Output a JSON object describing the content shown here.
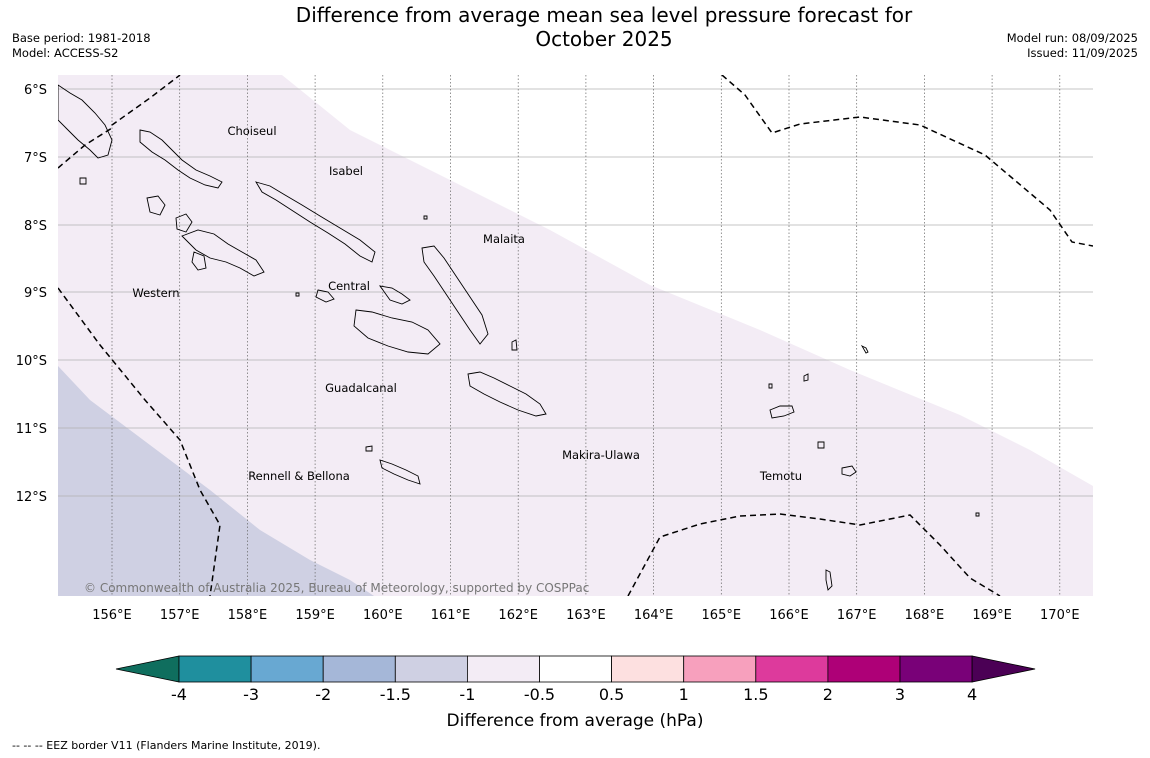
{
  "header": {
    "title_line1": "Difference from average mean sea level pressure forecast for",
    "title_line2": "October 2025",
    "base_period": "Base period: 1981-2018",
    "model": "Model: ACCESS-S2",
    "model_run": "Model run: 08/09/2025",
    "issued": "Issued: 11/09/2025"
  },
  "map": {
    "lat_labels": [
      "6°S",
      "7°S",
      "8°S",
      "9°S",
      "10°S",
      "11°S",
      "12°S"
    ],
    "lon_labels": [
      "156°E",
      "157°E",
      "158°E",
      "159°E",
      "160°E",
      "161°E",
      "162°E",
      "163°E",
      "164°E",
      "165°E",
      "166°E",
      "167°E",
      "168°E",
      "169°E",
      "170°E"
    ],
    "regions": [
      "Choiseul",
      "Isabel",
      "Malaita",
      "Western",
      "Central",
      "Guadalcanal",
      "Makira-Ulawa",
      "Temotu",
      "Rennell & Bellona"
    ],
    "copyright": "© Commonwealth of Australia 2025, Bureau of Meteorology, supported by COSPPac",
    "fill_colors": {
      "neg_0_5_to_neg_1": "#f3ecf5",
      "neg_1_to_neg_1_5": "#cfd0e3"
    }
  },
  "colorbar": {
    "title": "Difference from average (hPa)",
    "ticks": [
      "-4",
      "-3",
      "-2",
      "-1.5",
      "-1",
      "-0.5",
      "0.5",
      "1",
      "1.5",
      "2",
      "3",
      "4"
    ],
    "colors": [
      "#0f6e5e",
      "#1f8f9e",
      "#68a8d2",
      "#a5b7d8",
      "#cfd0e3",
      "#f3ecf5",
      "#ffffff",
      "#fde0e0",
      "#f7a0bd",
      "#dd3a9c",
      "#ae0077",
      "#790178",
      "#4b0055"
    ]
  },
  "footnote": "--  --  -- EEZ border V11 (Flanders Marine Institute, 2019)."
}
